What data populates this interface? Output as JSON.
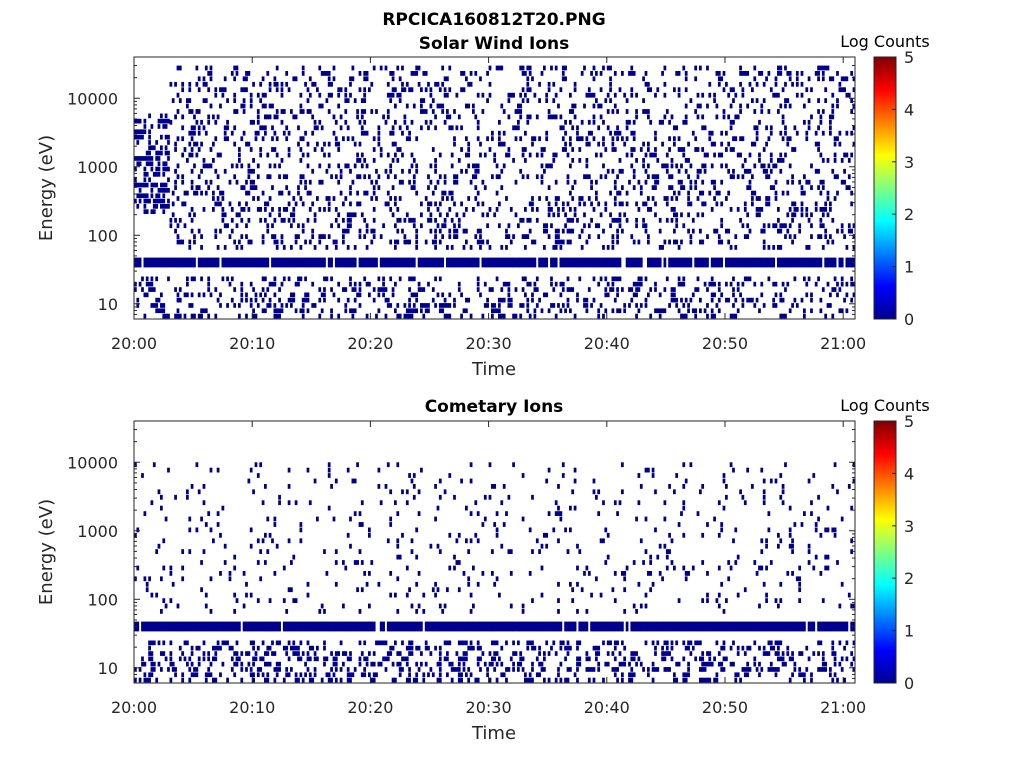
{
  "figure": {
    "title": "RPCICA160812T20.PNG"
  },
  "colors": {
    "counts": "#00008f",
    "axis": "#262626",
    "colormap": [
      "#00008f",
      "#0000ff",
      "#0080ff",
      "#00ffff",
      "#80ff80",
      "#ffff00",
      "#ff8000",
      "#ff0000",
      "#800000"
    ]
  },
  "chart_data": [
    {
      "type": "heatmap",
      "title": "Solar Wind Ions",
      "xlabel": "Time",
      "ylabel": "Energy (eV)",
      "x_ticks": [
        "20:00",
        "20:10",
        "20:20",
        "20:30",
        "20:40",
        "20:50",
        "21:00"
      ],
      "y_ticks": [
        "10",
        "100",
        "1000",
        "10000"
      ],
      "y_scale": "log",
      "xlim": [
        "20:00",
        "21:01"
      ],
      "ylim": [
        6,
        40000
      ],
      "colorbar": {
        "label": "Log Counts",
        "ticks": [
          "0",
          "1",
          "2",
          "3",
          "4",
          "5"
        ],
        "range": [
          0,
          5
        ]
      },
      "bands": [
        {
          "energy": 40,
          "from": "20:00",
          "to": "21:01",
          "level": 0,
          "density": 0.9
        },
        {
          "energy_min": 6,
          "energy_max": 25,
          "from": "20:00",
          "to": "21:01",
          "level": 0,
          "density": 0.25
        },
        {
          "energy_min": 60,
          "energy_max": 30000,
          "from": "20:03",
          "to": "21:01",
          "level": 0,
          "density": 0.2
        },
        {
          "energy_min": 200,
          "energy_max": 6000,
          "from": "20:00",
          "to": "20:03",
          "level": 0,
          "density": 0.5
        }
      ]
    },
    {
      "type": "heatmap",
      "title": "Cometary Ions",
      "xlabel": "Time",
      "ylabel": "Energy (eV)",
      "x_ticks": [
        "20:00",
        "20:10",
        "20:20",
        "20:30",
        "20:40",
        "20:50",
        "21:00"
      ],
      "y_ticks": [
        "10",
        "100",
        "1000",
        "10000"
      ],
      "y_scale": "log",
      "xlim": [
        "20:00",
        "21:01"
      ],
      "ylim": [
        6,
        40000
      ],
      "colorbar": {
        "label": "Log Counts",
        "ticks": [
          "0",
          "1",
          "2",
          "3",
          "4",
          "5"
        ],
        "range": [
          0,
          5
        ]
      },
      "bands": [
        {
          "energy": 40,
          "from": "20:00",
          "to": "21:01",
          "level": 0,
          "density": 0.95
        },
        {
          "energy_min": 6,
          "energy_max": 25,
          "from": "20:00",
          "to": "21:01",
          "level": 0,
          "density": 0.3
        },
        {
          "energy_min": 60,
          "energy_max": 10000,
          "from": "20:00",
          "to": "21:01",
          "level": 0,
          "density": 0.06
        }
      ]
    }
  ]
}
